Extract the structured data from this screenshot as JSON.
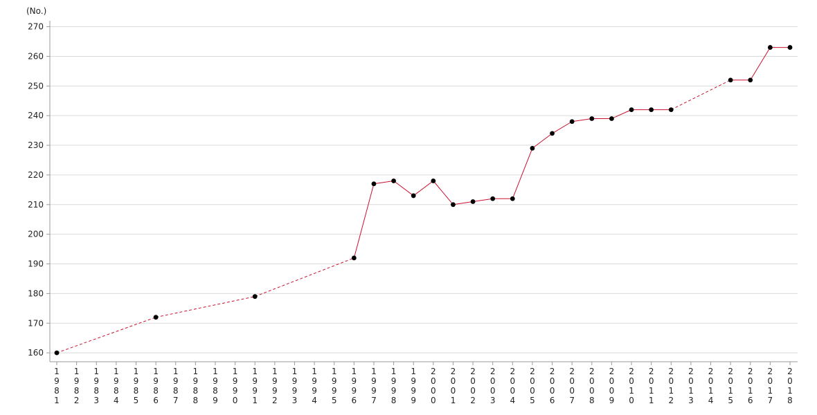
{
  "chart_data": {
    "type": "line",
    "unit_label": "(No.)",
    "title": "",
    "xlabel": "",
    "ylabel": "",
    "ylim": [
      157,
      272
    ],
    "yticks": [
      160,
      170,
      180,
      190,
      200,
      210,
      220,
      230,
      240,
      250,
      260,
      270
    ],
    "grid": true,
    "categories": [
      "1981",
      "1982",
      "1983",
      "1984",
      "1985",
      "1986",
      "1987",
      "1988",
      "1989",
      "1990",
      "1991",
      "1992",
      "1993",
      "1994",
      "1995",
      "1996",
      "1997",
      "1998",
      "1999",
      "2000",
      "2001",
      "2002",
      "2003",
      "2004",
      "2005",
      "2006",
      "2007",
      "2008",
      "2009",
      "2010",
      "2011",
      "2012",
      "2013",
      "2014",
      "2015",
      "2016",
      "2017",
      "2018"
    ],
    "series": [
      {
        "color": "#c8102e",
        "marker_color": "#000000",
        "gap_style": "dashed",
        "values": [
          160,
          null,
          null,
          null,
          null,
          172,
          null,
          null,
          null,
          null,
          179,
          null,
          null,
          null,
          null,
          192,
          217,
          218,
          213,
          218,
          210,
          211,
          212,
          212,
          229,
          234,
          238,
          239,
          239,
          242,
          242,
          242,
          null,
          null,
          252,
          252,
          263,
          263
        ]
      }
    ]
  }
}
